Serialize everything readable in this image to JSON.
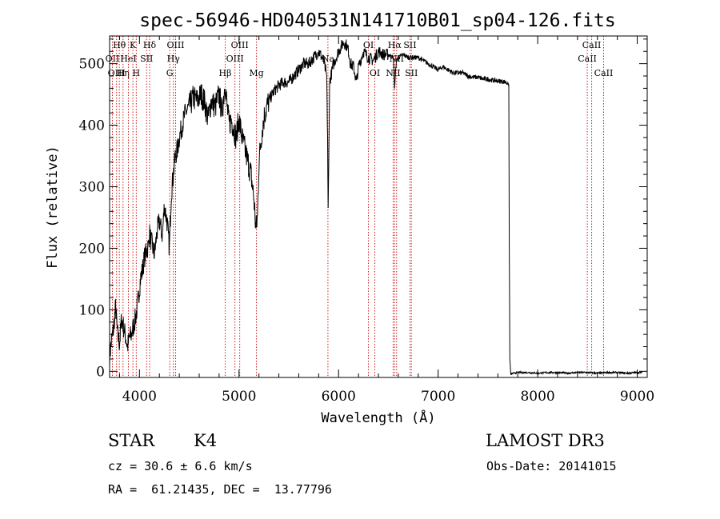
{
  "chart_data": {
    "type": "line",
    "title": "spec-56946-HD040531N141710B01_sp04-126.fits",
    "xlabel": "Wavelength (Å)",
    "ylabel": "Flux (relative)",
    "xlim": [
      3700,
      9100
    ],
    "ylim": [
      -10,
      545
    ],
    "x_ticks": [
      4000,
      5000,
      6000,
      7000,
      8000,
      9000
    ],
    "y_ticks": [
      0,
      100,
      200,
      300,
      400,
      500
    ],
    "x_tick_labels": [
      "4000",
      "5000",
      "6000",
      "7000",
      "8000",
      "9000"
    ],
    "y_tick_labels": [
      "0",
      "100",
      "200",
      "300",
      "400",
      "500"
    ],
    "grid": false,
    "line_color": "#000000",
    "marker_color": "#cc2222",
    "series": [
      {
        "x": [
          3700,
          3720,
          3740,
          3760,
          3780,
          3800,
          3820,
          3850,
          3880,
          3900,
          3920,
          3950,
          3970,
          3990,
          4010,
          4030,
          4050,
          4070,
          4090,
          4100,
          4120,
          4150,
          4180,
          4200,
          4230,
          4250,
          4280,
          4300,
          4320,
          4340,
          4360,
          4380,
          4400,
          4430,
          4460,
          4500,
          4540,
          4580,
          4620,
          4650,
          4690,
          4720,
          4760,
          4800,
          4830,
          4860,
          4880,
          4900,
          4920,
          4940,
          4970,
          5000,
          5030,
          5060,
          5090,
          5120,
          5150,
          5170,
          5185,
          5200,
          5230,
          5260,
          5300,
          5350,
          5400,
          5450,
          5500,
          5550,
          5600,
          5650,
          5700,
          5750,
          5800,
          5850,
          5880,
          5890,
          5895,
          5900,
          5910,
          5950,
          6000,
          6050,
          6080,
          6100,
          6120,
          6150,
          6180,
          6200,
          6250,
          6300,
          6350,
          6400,
          6450,
          6500,
          6550,
          6563,
          6580,
          6600,
          6650,
          6700,
          6750,
          6800,
          6850,
          6900,
          6950,
          7000,
          7050,
          7100,
          7150,
          7200,
          7250,
          7300,
          7350,
          7400,
          7450,
          7500,
          7550,
          7600,
          7650,
          7680,
          7700,
          7710,
          7715,
          7720,
          7730,
          7760,
          7800,
          7900,
          8000,
          8100,
          8200,
          8300,
          8400,
          8500,
          8600,
          8700,
          8800,
          8900,
          9000,
          9050
        ],
        "y": [
          25,
          50,
          70,
          105,
          60,
          45,
          85,
          65,
          40,
          55,
          60,
          80,
          95,
          120,
          150,
          165,
          185,
          195,
          205,
          225,
          210,
          190,
          230,
          245,
          220,
          270,
          240,
          200,
          290,
          320,
          350,
          360,
          380,
          400,
          420,
          430,
          445,
          440,
          450,
          440,
          410,
          440,
          430,
          450,
          420,
          470,
          430,
          400,
          410,
          400,
          380,
          410,
          380,
          360,
          340,
          320,
          280,
          230,
          250,
          340,
          390,
          420,
          440,
          455,
          465,
          470,
          470,
          480,
          490,
          500,
          500,
          510,
          520,
          505,
          480,
          380,
          260,
          320,
          470,
          500,
          520,
          535,
          530,
          520,
          500,
          495,
          470,
          495,
          520,
          510,
          505,
          520,
          515,
          515,
          510,
          460,
          505,
          510,
          515,
          510,
          510,
          510,
          505,
          500,
          495,
          490,
          495,
          490,
          485,
          485,
          485,
          480,
          478,
          478,
          475,
          475,
          473,
          472,
          471,
          470,
          468,
          465,
          200,
          20,
          -5,
          -3,
          -2,
          -2,
          -3,
          -2,
          -2,
          -3,
          -2,
          -2,
          -3,
          -2,
          -2,
          -3,
          -2,
          -2
        ]
      }
    ],
    "line_markers": [
      {
        "wl": 3798,
        "label": "Hθ",
        "row": 0
      },
      {
        "wl": 3728,
        "label": "OII",
        "row": 1
      },
      {
        "wl": 3770,
        "label": "OIII",
        "row": 2
      },
      {
        "wl": 3835,
        "label": "Hη",
        "row": 2
      },
      {
        "wl": 3889,
        "label": "HeI",
        "row": 1
      },
      {
        "wl": 3934,
        "label": "K",
        "row": 0
      },
      {
        "wl": 3968,
        "label": "H",
        "row": 2
      },
      {
        "wl": 4072,
        "label": "SII",
        "row": 1
      },
      {
        "wl": 4102,
        "label": "Hδ",
        "row": 0
      },
      {
        "wl": 4304,
        "label": "G",
        "row": 2
      },
      {
        "wl": 4341,
        "label": "Hγ",
        "row": 1
      },
      {
        "wl": 4363,
        "label": "OIII",
        "row": 0
      },
      {
        "wl": 4861,
        "label": "Hβ",
        "row": 2
      },
      {
        "wl": 4959,
        "label": "OIII",
        "row": 1
      },
      {
        "wl": 5007,
        "label": "OIII",
        "row": 0
      },
      {
        "wl": 5175,
        "label": "Mg",
        "row": 2
      },
      {
        "wl": 5893,
        "label": "Na",
        "row": 1
      },
      {
        "wl": 6300,
        "label": "OI",
        "row": 0
      },
      {
        "wl": 6364,
        "label": "OI",
        "row": 2
      },
      {
        "wl": 6548,
        "label": "NII",
        "row": 2
      },
      {
        "wl": 6563,
        "label": "Hα",
        "row": 0
      },
      {
        "wl": 6583,
        "label": "NII",
        "row": 1
      },
      {
        "wl": 6717,
        "label": "SII",
        "row": 0
      },
      {
        "wl": 6731,
        "label": "SII",
        "row": 2
      },
      {
        "wl": 8498,
        "label": "CaII",
        "row": 1
      },
      {
        "wl": 8542,
        "label": "CaII",
        "row": 0
      },
      {
        "wl": 8662,
        "label": "CaII",
        "row": 2
      }
    ]
  },
  "info": {
    "object_class": "STAR",
    "subclass": "K4",
    "survey": "LAMOST DR3",
    "redshift": "cz = 30.6 ± 6.6 km/s",
    "obs_date": "Obs-Date: 20141015",
    "coords": "RA =  61.21435, DEC =  13.77796"
  }
}
